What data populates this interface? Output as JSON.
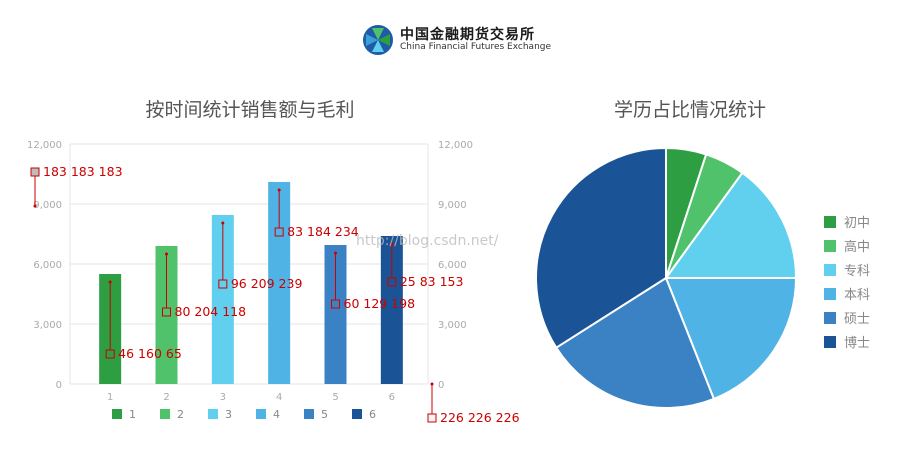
{
  "header": {
    "logo_cn": "中国金融期货交易所",
    "logo_en": "China Financial Futures Exchange",
    "watermark": "http://blog.csdn.net/"
  },
  "colors": {
    "c1": "#2e9e43",
    "c2": "#4fc26b",
    "c3": "#61d0ee",
    "c4": "#4fb3e6",
    "c5": "#3b82c4",
    "c6": "#1b5496",
    "annotation": "#cc0000",
    "grid": "#e6e6e6",
    "axis_text": "#aaaaaa"
  },
  "chart_data": [
    {
      "type": "bar",
      "title": "按时间统计销售额与毛利",
      "categories": [
        "1",
        "2",
        "3",
        "4",
        "5",
        "6"
      ],
      "values": [
        5500,
        6900,
        8450,
        10100,
        6950,
        7400
      ],
      "ylim": [
        0,
        12000
      ],
      "yticks": [
        "0",
        "3,000",
        "6,000",
        "9,000",
        "12,000"
      ],
      "yticks_right": [
        "0",
        "3,000",
        "6,000",
        "9,000",
        "12,000"
      ],
      "legend": [
        "1",
        "2",
        "3",
        "4",
        "5",
        "6"
      ],
      "legend_position": "bottom",
      "grid": true,
      "annotations": [
        {
          "text": "183 183 183",
          "x": "left-axis",
          "y": 10600
        },
        {
          "text": "46 160 65",
          "x": "1",
          "y": 1500
        },
        {
          "text": "80 204 118",
          "x": "2",
          "y": 3600
        },
        {
          "text": "96 209 239",
          "x": "3",
          "y": 5000
        },
        {
          "text": "83 184 234",
          "x": "4",
          "y": 7600
        },
        {
          "text": "60 129 198",
          "x": "5",
          "y": 4000
        },
        {
          "text": "25 83 153",
          "x": "6",
          "y": 5100
        },
        {
          "text": "226 226 226",
          "x": "right-axis",
          "y": -1700
        }
      ]
    },
    {
      "type": "pie",
      "title": "学历占比情况统计",
      "labels": [
        "初中",
        "高中",
        "专科",
        "本科",
        "硕士",
        "博士"
      ],
      "values": [
        5,
        5,
        15,
        19,
        22,
        34
      ],
      "legend_position": "right"
    }
  ]
}
